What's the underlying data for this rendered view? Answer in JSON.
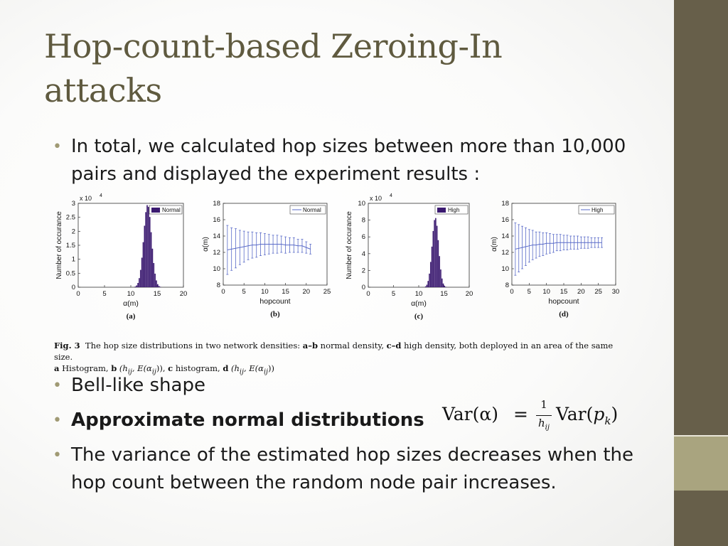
{
  "slide": {
    "title": "Hop-count-based Zeroing-In attacks",
    "bullets": [
      {
        "text": "In total, we calculated hop sizes between more than 10,000 pairs and displayed the experiment results :"
      },
      {
        "text": "Bell-like shape"
      },
      {
        "text": "Approximate normal distributions",
        "bold": true
      },
      {
        "text": "The variance of the estimated hop sizes decreases when the hop count between the random node pair increases."
      }
    ],
    "formula": {
      "lhs": "Var(α)",
      "eq": "=",
      "frac_num": "1",
      "frac_den": "h",
      "frac_den_sub": "ij",
      "rhs_var": "Var(",
      "rhs_p": "p",
      "rhs_sub": "k",
      "rhs_close": ")"
    },
    "colors": {
      "title": "#5f5a3f",
      "bullet_dot": "#a09a74",
      "sidebar": "#675f4a",
      "sidebar_accent": "#a9a47f",
      "histogram": "#3b1a70",
      "errorbar": "#5a6bc8"
    },
    "figure": {
      "caption": {
        "fig_label": "Fig. 3",
        "text1": "The hop size distributions in two network densities: ",
        "ab": "a–b",
        "text2": " normal density, ",
        "cd": "c–d",
        "text3": " high density, both deployed in an area of the same size.",
        "line2_a": "a",
        "line2_text1": " Histogram, ",
        "line2_b": "b",
        "line2_text2": " (h",
        "line2_sub1": "ij",
        "line2_text3": ", E(α",
        "line2_sub2": "ij",
        "line2_text4": ")), ",
        "line2_c": "c",
        "line2_text5": " histogram, ",
        "line2_d": "d",
        "line2_text6": " (h",
        "line2_sub3": "ij",
        "line2_text7": ", E(α",
        "line2_sub4": "ij",
        "line2_text8": "))"
      }
    }
  },
  "chart_data": [
    {
      "id": "a",
      "type": "bar",
      "panel_label": "(a)",
      "title": "",
      "xlabel": "α(m)",
      "ylabel": "Number of occurance",
      "exponent": "x 10",
      "exponent_power": "4",
      "xlim": [
        0,
        20
      ],
      "ylim": [
        0,
        3
      ],
      "xticks": [
        "0",
        "5",
        "10",
        "15",
        "20"
      ],
      "yticks": [
        "0",
        "0.5",
        "1",
        "1.5",
        "2",
        "2.5",
        "3"
      ],
      "legend": [
        "Normal"
      ],
      "legend_position": "top-right",
      "distribution": {
        "mean": 13.2,
        "sd": 0.75,
        "peak": 2.95,
        "xmin": 9.5,
        "xmax": 17
      }
    },
    {
      "id": "b",
      "type": "line",
      "panel_label": "(b)",
      "title": "",
      "xlabel": "hopcount",
      "ylabel": "α(m)",
      "xlim": [
        0,
        25
      ],
      "ylim": [
        8,
        18
      ],
      "xticks": [
        "0",
        "5",
        "10",
        "15",
        "20",
        "25"
      ],
      "yticks": [
        "8",
        "10",
        "12",
        "14",
        "16",
        "18"
      ],
      "legend": [
        "Normal"
      ],
      "legend_position": "top-right",
      "series": [
        {
          "x": [
            1,
            2,
            3,
            4,
            5,
            6,
            7,
            8,
            9,
            10,
            11,
            12,
            13,
            14,
            15,
            16,
            17,
            18,
            19,
            20,
            21
          ],
          "values": [
            12.3,
            12.4,
            12.5,
            12.6,
            12.7,
            12.8,
            12.9,
            12.9,
            13.0,
            13.0,
            13.0,
            13.0,
            13.0,
            13.0,
            12.9,
            12.9,
            12.9,
            12.8,
            12.8,
            12.6,
            12.4
          ],
          "err": [
            3.0,
            2.6,
            2.4,
            2.1,
            1.9,
            1.7,
            1.6,
            1.5,
            1.4,
            1.3,
            1.2,
            1.1,
            1.1,
            1.0,
            1.0,
            0.9,
            0.9,
            0.8,
            0.8,
            0.7,
            0.6
          ]
        }
      ]
    },
    {
      "id": "c",
      "type": "bar",
      "panel_label": "(c)",
      "title": "",
      "xlabel": "α(m)",
      "ylabel": "Number of occurance",
      "exponent": "x 10",
      "exponent_power": "4",
      "xlim": [
        0,
        20
      ],
      "ylim": [
        0,
        10
      ],
      "xticks": [
        "0",
        "5",
        "10",
        "15",
        "20"
      ],
      "yticks": [
        "0",
        "2",
        "4",
        "6",
        "8",
        "10"
      ],
      "legend": [
        "High"
      ],
      "legend_position": "top-right",
      "distribution": {
        "mean": 13.3,
        "sd": 0.65,
        "peak": 8.3,
        "xmin": 10,
        "xmax": 16.5
      }
    },
    {
      "id": "d",
      "type": "line",
      "panel_label": "(d)",
      "title": "",
      "xlabel": "hopcount",
      "ylabel": "α(m)",
      "xlim": [
        0,
        30
      ],
      "ylim": [
        8,
        18
      ],
      "xticks": [
        "0",
        "5",
        "10",
        "15",
        "20",
        "25",
        "30"
      ],
      "yticks": [
        "8",
        "10",
        "12",
        "14",
        "16",
        "18"
      ],
      "legend": [
        "High"
      ],
      "legend_position": "top-right",
      "series": [
        {
          "x": [
            1,
            2,
            3,
            4,
            5,
            6,
            7,
            8,
            9,
            10,
            11,
            12,
            13,
            14,
            15,
            16,
            17,
            18,
            19,
            20,
            21,
            22,
            23,
            24,
            25,
            26
          ],
          "values": [
            12.4,
            12.5,
            12.6,
            12.7,
            12.8,
            12.9,
            12.9,
            13.0,
            13.0,
            13.1,
            13.1,
            13.1,
            13.2,
            13.2,
            13.2,
            13.2,
            13.2,
            13.2,
            13.2,
            13.2,
            13.2,
            13.2,
            13.2,
            13.2,
            13.2,
            13.2
          ],
          "err": [
            3.2,
            2.9,
            2.6,
            2.3,
            2.0,
            1.8,
            1.6,
            1.5,
            1.4,
            1.3,
            1.2,
            1.1,
            1.0,
            1.0,
            0.9,
            0.9,
            0.8,
            0.8,
            0.8,
            0.7,
            0.7,
            0.7,
            0.6,
            0.6,
            0.6,
            0.6
          ]
        }
      ]
    }
  ]
}
